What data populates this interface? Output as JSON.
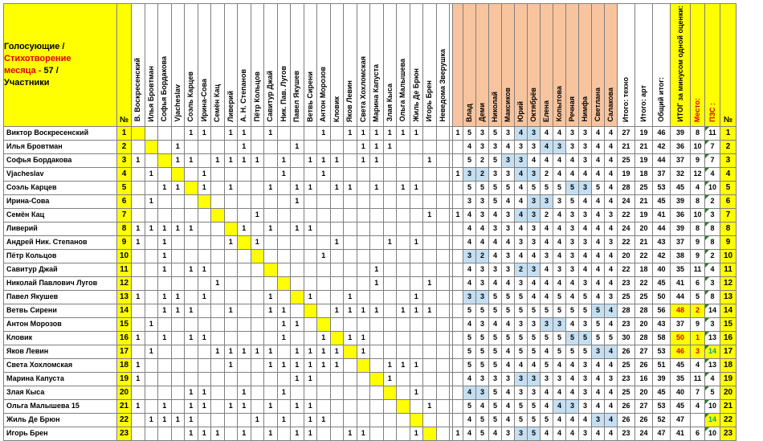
{
  "title": {
    "line1": "Голосующие /",
    "line2": "Стихотворение",
    "line3a": "месяца - ",
    "line3b": "57 /",
    "line4": "Участники"
  },
  "num_header": "№",
  "voter_cols": [
    "В. Воскресенский",
    "Илья Бровтман",
    "Софья Бордакова",
    "Vjacheslav",
    "Соэль Карцев",
    "Ирина-Сова",
    "Семён Кац",
    "Ливерий",
    "А. Н. Степанов",
    "Пётр Кольцов",
    "Савитур Джай",
    "Ник. Пав. Лугов",
    "Павел Якушев",
    "Ветвь Сирени",
    "Антон Морозов",
    "Кловик",
    "Яков Левин",
    "Света Хохломская",
    "Марина Капуста",
    "Злая Кыса",
    "Ольга Малышева",
    "Жиль Де Брюн",
    "Игорь Брен",
    "Неведома Зверушка"
  ],
  "judge_cols": [
    "Влад",
    "Деми",
    "Николай",
    "Максиков",
    "Юрий",
    "Октябрёв",
    "Елена",
    "Копытова",
    "Речная",
    "Нимфа",
    "Светлана",
    "Салакова"
  ],
  "total_cols": [
    "Итого: техно",
    "Итого: арт",
    "Общий итог:",
    "ИТОГ за минусом одной оценки:",
    "Место:",
    "ПЗС :"
  ],
  "rows": [
    {
      "name": "Виктор Воскресенский",
      "num": "1",
      "votes": [
        "",
        "",
        "",
        "",
        "1",
        "1",
        "",
        "1",
        "1",
        "",
        "1",
        "",
        "",
        "",
        "1",
        "",
        "1",
        "1",
        "1",
        "1",
        "1",
        "1",
        "",
        ""
      ],
      "scores": [
        "1",
        "5",
        "3",
        "5",
        "3",
        "4",
        "3",
        "4",
        "4",
        "3",
        "3",
        "4",
        "4"
      ],
      "totals": [
        "27",
        "19",
        "46",
        "39",
        "8",
        "11"
      ],
      "lb": [
        5,
        6
      ]
    },
    {
      "name": "Илья Бровтман",
      "num": "2",
      "votes": [
        "",
        "",
        "",
        "1",
        "",
        "",
        "",
        "",
        "1",
        "",
        "",
        "",
        "1",
        "",
        "",
        "",
        "",
        "1",
        "1",
        "1",
        "",
        "",
        "",
        ""
      ],
      "scores": [
        "",
        "4",
        "3",
        "3",
        "4",
        "3",
        "3",
        "4",
        "3",
        "3",
        "3",
        "4",
        "4"
      ],
      "totals": [
        "21",
        "21",
        "42",
        "36",
        "10",
        "7"
      ],
      "lb": [
        7,
        8
      ]
    },
    {
      "name": "Софья Бордакова",
      "num": "3",
      "votes": [
        "1",
        "",
        "",
        "1",
        "1",
        "",
        "1",
        "1",
        "1",
        "1",
        "",
        "1",
        "",
        "1",
        "1",
        "1",
        "",
        "1",
        "1",
        "",
        "",
        "",
        "1",
        ""
      ],
      "scores": [
        "",
        "5",
        "2",
        "5",
        "3",
        "3",
        "4",
        "4",
        "4",
        "4",
        "3",
        "4",
        "4"
      ],
      "totals": [
        "25",
        "19",
        "44",
        "37",
        "9",
        "7"
      ],
      "lb": [
        4,
        5
      ]
    },
    {
      "name": "Vjacheslav",
      "num": "4",
      "votes": [
        "",
        "1",
        "",
        "",
        "",
        "1",
        "",
        "",
        "",
        "",
        "",
        "1",
        "",
        "",
        "1",
        "",
        "",
        "",
        "",
        "",
        "",
        "",
        "",
        ""
      ],
      "scores": [
        "1",
        "3",
        "2",
        "3",
        "3",
        "4",
        "3",
        "2",
        "4",
        "4",
        "4",
        "4",
        "4"
      ],
      "totals": [
        "19",
        "18",
        "37",
        "32",
        "12",
        "4"
      ],
      "lb": [
        1,
        2,
        5,
        6
      ]
    },
    {
      "name": "Соэль Карцев",
      "num": "5",
      "votes": [
        "",
        "",
        "1",
        "1",
        "",
        "1",
        "",
        "1",
        "",
        "",
        "1",
        "",
        "1",
        "1",
        "",
        "1",
        "1",
        "",
        "1",
        "",
        "1",
        "1",
        "",
        ""
      ],
      "scores": [
        "",
        "5",
        "5",
        "5",
        "5",
        "4",
        "5",
        "5",
        "5",
        "5",
        "3",
        "5",
        "4"
      ],
      "totals": [
        "28",
        "25",
        "53",
        "45",
        "4",
        "10"
      ],
      "lb": [
        9,
        10
      ]
    },
    {
      "name": "Ирина-Сова",
      "num": "6",
      "votes": [
        "",
        "1",
        "",
        "",
        "",
        "",
        "",
        "",
        "",
        "",
        "",
        "",
        "1",
        "",
        "",
        "",
        "",
        "",
        "",
        "",
        "",
        "",
        "",
        ""
      ],
      "scores": [
        "",
        "3",
        "3",
        "5",
        "4",
        "4",
        "3",
        "3",
        "3",
        "5",
        "4",
        "4",
        "4"
      ],
      "totals": [
        "24",
        "21",
        "45",
        "39",
        "8",
        "2"
      ],
      "lb": [
        6,
        7
      ]
    },
    {
      "name": "Семён Кац",
      "num": "7",
      "votes": [
        "",
        "",
        "",
        "",
        "",
        "",
        "",
        "",
        "",
        "1",
        "",
        "",
        "",
        "",
        "",
        "",
        "",
        "",
        "",
        "",
        "",
        "",
        "1",
        ""
      ],
      "scores": [
        "1",
        "4",
        "3",
        "4",
        "3",
        "4",
        "3",
        "2",
        "4",
        "3",
        "3",
        "4",
        "3"
      ],
      "totals": [
        "22",
        "19",
        "41",
        "36",
        "10",
        "3"
      ],
      "lb": [
        5,
        6
      ]
    },
    {
      "name": "Ливерий",
      "num": "8",
      "votes": [
        "1",
        "1",
        "1",
        "1",
        "1",
        "",
        "",
        "",
        "1",
        "",
        "1",
        "",
        "1",
        "1",
        "",
        "",
        "",
        "",
        "",
        "",
        "",
        "",
        "",
        ""
      ],
      "scores": [
        "",
        "4",
        "4",
        "3",
        "3",
        "4",
        "3",
        "4",
        "4",
        "3",
        "4",
        "4",
        "4"
      ],
      "totals": [
        "24",
        "20",
        "44",
        "39",
        "8",
        "8"
      ],
      "lb": []
    },
    {
      "name": "Андрей Ник. Степанов",
      "num": "9",
      "votes": [
        "1",
        "",
        "1",
        "",
        "",
        "",
        "",
        "1",
        "",
        "1",
        "",
        "",
        "",
        "",
        "",
        "1",
        "",
        "",
        "",
        "1",
        "",
        "1",
        "",
        ""
      ],
      "scores": [
        "",
        "4",
        "4",
        "4",
        "4",
        "3",
        "3",
        "4",
        "4",
        "3",
        "3",
        "4",
        "3"
      ],
      "totals": [
        "22",
        "21",
        "43",
        "37",
        "9",
        "8"
      ],
      "lb": []
    },
    {
      "name": "Пётр Кольцов",
      "num": "10",
      "votes": [
        "",
        "",
        "1",
        "",
        "",
        "",
        "",
        "",
        "",
        "",
        "",
        "",
        "",
        "",
        "1",
        "",
        "",
        "",
        "",
        "",
        "",
        "",
        "",
        ""
      ],
      "scores": [
        "",
        "3",
        "2",
        "4",
        "3",
        "4",
        "4",
        "3",
        "4",
        "3",
        "4",
        "4",
        "4"
      ],
      "totals": [
        "20",
        "22",
        "42",
        "38",
        "9",
        "2"
      ],
      "lb": [
        1,
        2
      ]
    },
    {
      "name": "Савитур Джай",
      "num": "11",
      "votes": [
        "",
        "",
        "1",
        "",
        "1",
        "1",
        "",
        "",
        "",
        "",
        "",
        "",
        "",
        "",
        "",
        "",
        "",
        "",
        "1",
        "",
        "",
        "",
        "",
        ""
      ],
      "scores": [
        "",
        "4",
        "3",
        "3",
        "3",
        "2",
        "3",
        "4",
        "3",
        "3",
        "4",
        "4",
        "4"
      ],
      "totals": [
        "22",
        "18",
        "40",
        "35",
        "11",
        "4"
      ],
      "lb": [
        5,
        6
      ]
    },
    {
      "name": "Николай Павлович Лугов",
      "num": "12",
      "votes": [
        "",
        "",
        "",
        "",
        "",
        "",
        "1",
        "",
        "",
        "",
        "",
        "",
        "",
        "",
        "",
        "",
        "",
        "",
        "1",
        "",
        "",
        "",
        "1",
        ""
      ],
      "scores": [
        "",
        "4",
        "3",
        "4",
        "4",
        "3",
        "4",
        "4",
        "4",
        "4",
        "3",
        "4",
        "4"
      ],
      "totals": [
        "23",
        "22",
        "45",
        "41",
        "6",
        "3"
      ],
      "lb": []
    },
    {
      "name": "Павел Якушев",
      "num": "13",
      "votes": [
        "1",
        "",
        "1",
        "1",
        "",
        "1",
        "",
        "",
        "",
        "",
        "1",
        "",
        "",
        "1",
        "",
        "",
        "1",
        "",
        "",
        "",
        "",
        "1",
        "",
        ""
      ],
      "scores": [
        "",
        "3",
        "3",
        "5",
        "5",
        "5",
        "4",
        "4",
        "5",
        "4",
        "5",
        "4",
        "3"
      ],
      "totals": [
        "25",
        "25",
        "50",
        "44",
        "5",
        "8"
      ],
      "lb": [
        1,
        2
      ]
    },
    {
      "name": "Ветвь Сирени",
      "num": "14",
      "votes": [
        "",
        "",
        "1",
        "1",
        "1",
        "",
        "",
        "1",
        "",
        "",
        "1",
        "1",
        "",
        "",
        "",
        "1",
        "1",
        "1",
        "1",
        "",
        "1",
        "1",
        "1",
        ""
      ],
      "scores": [
        "",
        "5",
        "5",
        "5",
        "5",
        "5",
        "5",
        "5",
        "5",
        "5",
        "5",
        "5",
        "4"
      ],
      "totals": [
        "28",
        "28",
        "56",
        "48",
        "2",
        "14"
      ],
      "lb": [
        11,
        12
      ]
    },
    {
      "name": "Антон Морозов",
      "num": "15",
      "votes": [
        "",
        "1",
        "",
        "",
        "",
        "",
        "",
        "",
        "",
        "",
        "",
        "1",
        "1",
        "",
        "",
        "",
        "",
        "",
        "",
        "",
        "",
        "",
        "",
        ""
      ],
      "scores": [
        "",
        "4",
        "3",
        "4",
        "4",
        "3",
        "3",
        "3",
        "3",
        "4",
        "3",
        "5",
        "4"
      ],
      "totals": [
        "23",
        "20",
        "43",
        "37",
        "9",
        "3"
      ],
      "lb": [
        7,
        8
      ]
    },
    {
      "name": "Кловик",
      "num": "16",
      "votes": [
        "1",
        "",
        "1",
        "",
        "1",
        "1",
        "",
        "",
        "",
        "",
        "",
        "1",
        "",
        "",
        "1",
        "",
        "1",
        "1",
        "",
        "",
        "",
        "",
        "",
        ""
      ],
      "scores": [
        "",
        "5",
        "5",
        "5",
        "5",
        "5",
        "5",
        "5",
        "5",
        "5",
        "5",
        "5",
        "5"
      ],
      "totals": [
        "30",
        "28",
        "58",
        "50",
        "1",
        "13"
      ],
      "lb": [
        9,
        10
      ]
    },
    {
      "name": "Яков Левин",
      "num": "17",
      "votes": [
        "",
        "1",
        "",
        "",
        "",
        "",
        "1",
        "1",
        "1",
        "1",
        "1",
        "",
        "1",
        "1",
        "1",
        "1",
        "",
        "1",
        "",
        "",
        "",
        "",
        "",
        ""
      ],
      "scores": [
        "",
        "5",
        "5",
        "5",
        "4",
        "5",
        "5",
        "4",
        "5",
        "5",
        "5",
        "3",
        "4"
      ],
      "totals": [
        "26",
        "27",
        "53",
        "46",
        "3",
        "14"
      ],
      "lb": [
        11,
        12
      ]
    },
    {
      "name": "Света Хохломская",
      "num": "18",
      "votes": [
        "1",
        "",
        "",
        "",
        "",
        "",
        "",
        "1",
        "",
        "",
        "1",
        "1",
        "1",
        "1",
        "1",
        "1",
        "",
        "",
        "",
        "1",
        "1",
        "1",
        "",
        ""
      ],
      "scores": [
        "",
        "5",
        "5",
        "5",
        "4",
        "4",
        "4",
        "5",
        "4",
        "4",
        "3",
        "4",
        "4"
      ],
      "totals": [
        "25",
        "26",
        "51",
        "45",
        "4",
        "13"
      ],
      "lb": []
    },
    {
      "name": "Марина Капуста",
      "num": "19",
      "votes": [
        "1",
        "",
        "",
        "",
        "",
        "",
        "",
        "",
        "",
        "",
        "",
        "",
        "1",
        "1",
        "",
        "",
        "",
        "",
        "",
        "1",
        "",
        "",
        "",
        ""
      ],
      "scores": [
        "",
        "4",
        "3",
        "3",
        "3",
        "3",
        "3",
        "3",
        "3",
        "4",
        "3",
        "4",
        "3"
      ],
      "totals": [
        "23",
        "16",
        "39",
        "35",
        "11",
        "4"
      ],
      "lb": [
        5,
        6
      ]
    },
    {
      "name": "Злая Кыса",
      "num": "20",
      "votes": [
        "",
        "",
        "",
        "",
        "1",
        "1",
        "",
        "",
        "1",
        "",
        "",
        "1",
        "",
        "",
        "",
        "",
        "",
        "",
        "",
        "",
        "",
        "1",
        "",
        ""
      ],
      "scores": [
        "",
        "4",
        "3",
        "5",
        "4",
        "3",
        "3",
        "4",
        "4",
        "4",
        "3",
        "4",
        "4"
      ],
      "totals": [
        "25",
        "20",
        "45",
        "40",
        "7",
        "5"
      ],
      "lb": [
        1,
        2
      ]
    },
    {
      "name": "Ольга Малышева 15",
      "num": "21",
      "votes": [
        "1",
        "",
        "1",
        "",
        "1",
        "1",
        "",
        "1",
        "1",
        "",
        "1",
        "",
        "1",
        "1",
        "",
        "",
        "",
        "",
        "",
        "",
        "",
        "",
        "1",
        ""
      ],
      "scores": [
        "",
        "5",
        "4",
        "5",
        "4",
        "5",
        "5",
        "4",
        "4",
        "3",
        "3",
        "4",
        "4"
      ],
      "totals": [
        "26",
        "27",
        "53",
        "45",
        "4",
        "10"
      ],
      "lb": [
        8,
        9
      ]
    },
    {
      "name": "Жиль Де Брюн",
      "num": "22",
      "votes": [
        "",
        "1",
        "1",
        "1",
        "1",
        "",
        "",
        "",
        "",
        "1",
        "",
        "1",
        "",
        "1",
        "1",
        "",
        "",
        "",
        "",
        "",
        "",
        "",
        "",
        ""
      ],
      "scores": [
        "",
        "4",
        "5",
        "5",
        "4",
        "5",
        "5",
        "5",
        "4",
        "4",
        "4",
        "3",
        "4"
      ],
      "totals": [
        "26",
        "26",
        "52",
        "47",
        "",
        "14"
      ],
      "lb": [
        11,
        12
      ]
    },
    {
      "name": "Игорь Брен",
      "num": "23",
      "votes": [
        "",
        "",
        "",
        "",
        "1",
        "1",
        "1",
        "",
        "1",
        "",
        "1",
        "",
        "1",
        "1",
        "",
        "",
        "1",
        "1",
        "",
        "",
        "",
        "1",
        "",
        ""
      ],
      "scores": [
        "1",
        "4",
        "5",
        "4",
        "3",
        "3",
        "5",
        "4",
        "4",
        "4",
        "3",
        "4",
        "4"
      ],
      "totals": [
        "23",
        "24",
        "47",
        "41",
        "6",
        "10"
      ],
      "lb": [
        5,
        6
      ]
    }
  ],
  "colors": {
    "yellow": "#ffff00",
    "orange_header": "#f8c49e",
    "light_blue": "#c5dff2",
    "red": "#e00000",
    "teal": "#00a0a0"
  }
}
